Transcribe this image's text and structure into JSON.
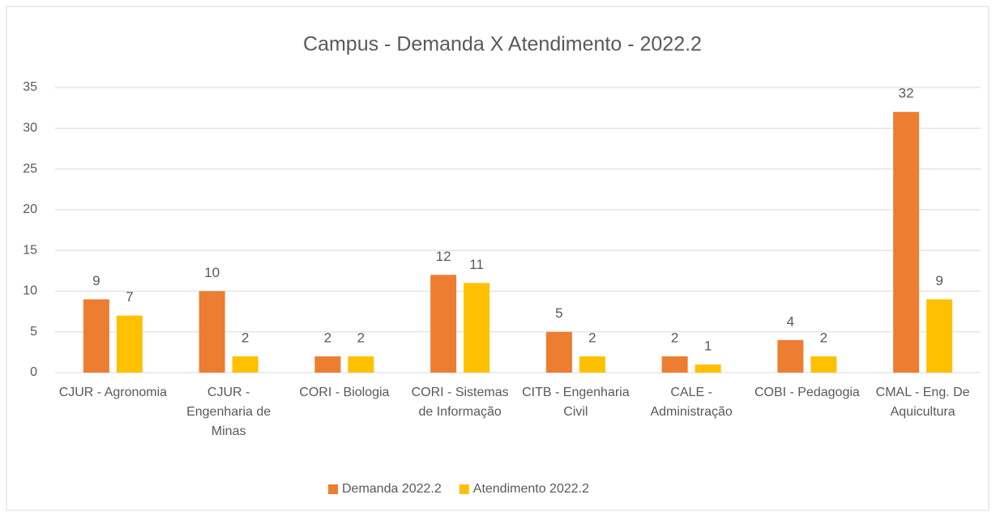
{
  "chart_data": {
    "type": "bar",
    "title": "Campus - Demanda X Atendimento - 2022.2",
    "categories": [
      "CJUR - Agronomia",
      "CJUR - Engenharia de Minas",
      "CORI - Biologia",
      "CORI - Sistemas de Informação",
      "CITB - Engenharia Civil",
      "CALE - Administração",
      "COBI - Pedagogia",
      "CMAL - Eng. De Aquicultura"
    ],
    "series": [
      {
        "name": "Demanda 2022.2",
        "color": "#ED7D31",
        "values": [
          9,
          10,
          2,
          12,
          5,
          2,
          4,
          32
        ]
      },
      {
        "name": "Atendimento 2022.2",
        "color": "#FFC000",
        "values": [
          7,
          2,
          2,
          11,
          2,
          1,
          2,
          9
        ]
      }
    ],
    "ylim": [
      0,
      35
    ],
    "yticks": [
      0,
      5,
      10,
      15,
      20,
      25,
      30,
      35
    ],
    "grid": true,
    "legend": "bottom"
  }
}
